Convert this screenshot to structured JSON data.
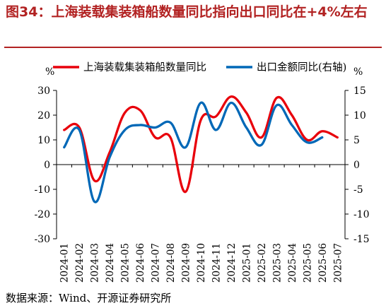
{
  "figure": {
    "title": "图34：上海装载集装箱船数量同比指向出口同比在+4%左右",
    "source": "数据来源：Wind、开源证券研究所"
  },
  "colors": {
    "title": "#b22222",
    "series_ship": "#e8000b",
    "series_export": "#0068b7",
    "axis": "#000000"
  },
  "chart_data": {
    "type": "line",
    "title": "",
    "x": [
      "2024-01",
      "2024-02",
      "2024-03",
      "2024-04",
      "2024-05",
      "2024-06",
      "2024-07",
      "2024-08",
      "2024-09",
      "2024-10",
      "2024-11",
      "2024-12",
      "2025-01",
      "2025-02",
      "2025-03",
      "2025-04",
      "2025-05",
      "2025-06",
      "2025-07"
    ],
    "left_axis": {
      "unit": "%",
      "ylim": [
        -30,
        30
      ],
      "ticks": [
        30,
        20,
        10,
        0,
        -10,
        -20,
        -30
      ]
    },
    "right_axis": {
      "unit": "%",
      "ylim": [
        -15,
        15
      ],
      "ticks": [
        15,
        10,
        5,
        0,
        -5,
        -10,
        -15
      ]
    },
    "series": [
      {
        "name": "上海装载集装箱船数量同比",
        "axis": "left",
        "color": "#e8000b",
        "values": [
          14,
          15,
          -6.5,
          5,
          21,
          22,
          11,
          11,
          -11,
          18,
          19.5,
          27.5,
          21,
          11,
          27,
          20,
          10,
          13.5,
          11
        ]
      },
      {
        "name": "出口金额同比(右轴)",
        "axis": "right",
        "color": "#0068b7",
        "values": [
          3.5,
          7,
          -7.5,
          1.5,
          7,
          8,
          7.5,
          8.5,
          3.5,
          12.5,
          7,
          12.5,
          7.5,
          4,
          12,
          8,
          4.5,
          5.5,
          null
        ]
      }
    ],
    "grid": false,
    "legend_position": "top"
  }
}
